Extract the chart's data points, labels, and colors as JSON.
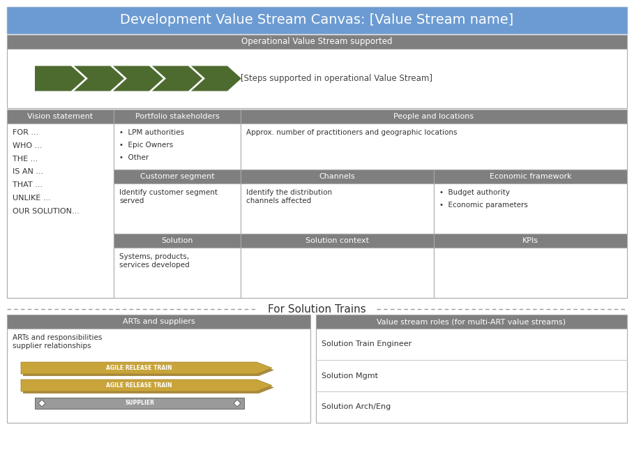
{
  "title": "Development Value Stream Canvas: [Value Stream name]",
  "title_bg": "#6b9bd2",
  "title_color": "#ffffff",
  "header_bg": "#7f7f7f",
  "header_color": "#ffffff",
  "body_bg": "#ffffff",
  "body_color": "#333333",
  "arrow_color": "#4d6b2f",
  "border_color": "#aaaaaa",
  "dashed_color": "#999999",
  "ops_header": "Operational Value Stream supported",
  "steps_text": "[Steps supported in operational Value Stream]",
  "vision_header": "Vision statement",
  "vision_items": [
    "FOR ...",
    "WHO ...",
    "THE ...",
    "IS AN ...",
    "THAT ...",
    "UNLIKE ...",
    "OUR SOLUTION..."
  ],
  "portfolio_header": "Portfolio stakeholders",
  "portfolio_items": [
    "LPM authorities",
    "Epic Owners",
    "Other"
  ],
  "people_header": "People and locations",
  "people_text": "Approx. number of practitioners and geographic locations",
  "customer_header": "Customer segment",
  "customer_text": "Identify customer segment\nserved",
  "channels_header": "Channels",
  "channels_text": "Identify the distribution\nchannels affected",
  "economic_header": "Economic framework",
  "economic_items": [
    "Budget authority",
    "Economic parameters"
  ],
  "solution_header": "Solution",
  "solution_text": "Systems, products,\nservices developed",
  "sol_context_header": "Solution context",
  "kpis_header": "KPIs",
  "for_solution_trains": "For Solution Trains",
  "arts_header": "ARTs and suppliers",
  "arts_text": "ARTs and responsibilities\nsupplier relationships",
  "art_label": "AGILE RELEASE TRAIN",
  "supplier_label": "SUPPLIER",
  "art_color": "#c8a43a",
  "art_shadow_color": "#a08030",
  "supplier_color": "#9a9a9a",
  "roles_header": "Value stream roles (for multi-ART value streams)",
  "roles_items": [
    "Solution Train Engineer",
    "Solution Mgmt",
    "Solution Arch/Eng"
  ],
  "fig_bg": "#ffffff",
  "outer_border": "#bbbbbb"
}
